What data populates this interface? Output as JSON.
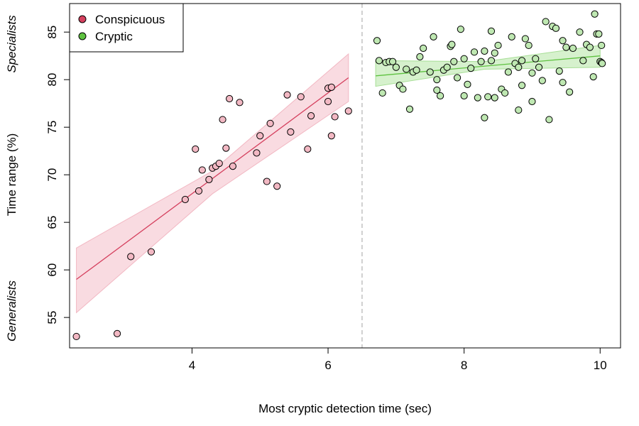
{
  "chart_data": {
    "type": "scatter",
    "title": "",
    "xlabel": "Most cryptic detection time (sec)",
    "ylabel": "Time range (%)",
    "xlim": [
      2.2,
      10.3
    ],
    "ylim": [
      51.8,
      88.0
    ],
    "xticks": [
      4,
      6,
      8,
      10
    ],
    "yticks": [
      55,
      60,
      65,
      70,
      75,
      80,
      85
    ],
    "divider_x": 6.5,
    "side_labels": {
      "top": "Specialists",
      "bottom": "Generalists"
    },
    "legend_position": "top-left",
    "series": [
      {
        "name": "Conspicuous",
        "legend_color": "#d5405e",
        "point_fill": "#f2b8c3",
        "line_color": "#d5405e",
        "band_color": "#f9dbe1",
        "band_stroke": "#f2b8c3",
        "fit": {
          "x": [
            2.3,
            6.3
          ],
          "y": [
            59.0,
            80.2
          ]
        },
        "band_upper": [
          [
            2.3,
            62.3
          ],
          [
            4.3,
            70.4
          ],
          [
            6.3,
            82.7
          ]
        ],
        "band_lower": [
          [
            2.3,
            55.5
          ],
          [
            4.3,
            68.0
          ],
          [
            6.3,
            77.7
          ]
        ],
        "points": [
          [
            2.3,
            53.0
          ],
          [
            2.9,
            53.3
          ],
          [
            3.1,
            61.4
          ],
          [
            3.4,
            61.9
          ],
          [
            3.9,
            67.4
          ],
          [
            4.05,
            72.7
          ],
          [
            4.1,
            68.3
          ],
          [
            4.15,
            70.5
          ],
          [
            4.25,
            69.5
          ],
          [
            4.3,
            70.7
          ],
          [
            4.35,
            70.9
          ],
          [
            4.4,
            71.2
          ],
          [
            4.45,
            75.8
          ],
          [
            4.5,
            72.8
          ],
          [
            4.55,
            78.0
          ],
          [
            4.6,
            70.9
          ],
          [
            4.7,
            77.6
          ],
          [
            4.95,
            72.3
          ],
          [
            5.0,
            74.1
          ],
          [
            5.1,
            69.3
          ],
          [
            5.15,
            75.4
          ],
          [
            5.25,
            68.8
          ],
          [
            5.4,
            78.4
          ],
          [
            5.45,
            74.5
          ],
          [
            5.6,
            78.2
          ],
          [
            5.7,
            72.7
          ],
          [
            5.75,
            76.2
          ],
          [
            6.0,
            77.7
          ],
          [
            6.0,
            79.1
          ],
          [
            6.05,
            79.2
          ],
          [
            6.05,
            74.1
          ],
          [
            6.1,
            76.1
          ],
          [
            6.3,
            76.7
          ]
        ]
      },
      {
        "name": "Cryptic",
        "legend_color": "#5ec240",
        "point_fill": "#bfe8b2",
        "line_color": "#5ec240",
        "band_color": "#d6f1cd",
        "band_stroke": "#a7de96",
        "fit": {
          "x": [
            6.7,
            10.0
          ],
          "y": [
            80.4,
            82.5
          ]
        },
        "band_upper": [
          [
            6.7,
            82.0
          ],
          [
            8.3,
            81.9
          ],
          [
            10.0,
            83.6
          ]
        ],
        "band_lower": [
          [
            6.7,
            79.3
          ],
          [
            8.3,
            81.1
          ],
          [
            10.0,
            81.3
          ]
        ],
        "points": [
          [
            6.72,
            84.1
          ],
          [
            6.75,
            82.0
          ],
          [
            6.8,
            78.6
          ],
          [
            6.85,
            81.8
          ],
          [
            6.9,
            81.9
          ],
          [
            6.95,
            81.9
          ],
          [
            7.0,
            81.3
          ],
          [
            7.05,
            79.4
          ],
          [
            7.1,
            79.0
          ],
          [
            7.15,
            81.1
          ],
          [
            7.2,
            76.9
          ],
          [
            7.25,
            80.8
          ],
          [
            7.3,
            81.0
          ],
          [
            7.35,
            82.4
          ],
          [
            7.4,
            83.3
          ],
          [
            7.5,
            80.8
          ],
          [
            7.55,
            84.5
          ],
          [
            7.6,
            78.9
          ],
          [
            7.6,
            80.0
          ],
          [
            7.65,
            78.3
          ],
          [
            7.7,
            81.0
          ],
          [
            7.75,
            81.3
          ],
          [
            7.8,
            83.5
          ],
          [
            7.82,
            83.7
          ],
          [
            7.85,
            81.9
          ],
          [
            7.9,
            80.2
          ],
          [
            7.95,
            85.3
          ],
          [
            8.0,
            78.3
          ],
          [
            8.0,
            82.2
          ],
          [
            8.05,
            79.5
          ],
          [
            8.1,
            81.2
          ],
          [
            8.15,
            82.9
          ],
          [
            8.2,
            78.1
          ],
          [
            8.25,
            81.9
          ],
          [
            8.3,
            83.0
          ],
          [
            8.3,
            76.0
          ],
          [
            8.35,
            78.2
          ],
          [
            8.4,
            82.0
          ],
          [
            8.4,
            85.1
          ],
          [
            8.45,
            82.8
          ],
          [
            8.45,
            78.1
          ],
          [
            8.5,
            83.6
          ],
          [
            8.55,
            79.0
          ],
          [
            8.6,
            78.6
          ],
          [
            8.65,
            80.8
          ],
          [
            8.7,
            84.5
          ],
          [
            8.75,
            81.7
          ],
          [
            8.8,
            76.8
          ],
          [
            8.8,
            81.3
          ],
          [
            8.85,
            82.0
          ],
          [
            8.85,
            79.4
          ],
          [
            8.9,
            84.3
          ],
          [
            8.95,
            83.6
          ],
          [
            9.0,
            80.7
          ],
          [
            9.0,
            77.7
          ],
          [
            9.05,
            82.2
          ],
          [
            9.1,
            81.3
          ],
          [
            9.15,
            79.9
          ],
          [
            9.2,
            86.1
          ],
          [
            9.25,
            75.8
          ],
          [
            9.3,
            85.6
          ],
          [
            9.35,
            85.4
          ],
          [
            9.4,
            80.9
          ],
          [
            9.45,
            79.7
          ],
          [
            9.45,
            84.1
          ],
          [
            9.5,
            83.4
          ],
          [
            9.55,
            78.7
          ],
          [
            9.6,
            83.3
          ],
          [
            9.7,
            85.0
          ],
          [
            9.75,
            82.0
          ],
          [
            9.8,
            83.7
          ],
          [
            9.85,
            83.4
          ],
          [
            9.9,
            80.3
          ],
          [
            9.92,
            86.9
          ],
          [
            9.95,
            84.8
          ],
          [
            9.98,
            84.8
          ],
          [
            10.0,
            81.9
          ],
          [
            10.02,
            81.8
          ],
          [
            10.02,
            83.6
          ],
          [
            10.03,
            81.7
          ]
        ]
      }
    ]
  }
}
